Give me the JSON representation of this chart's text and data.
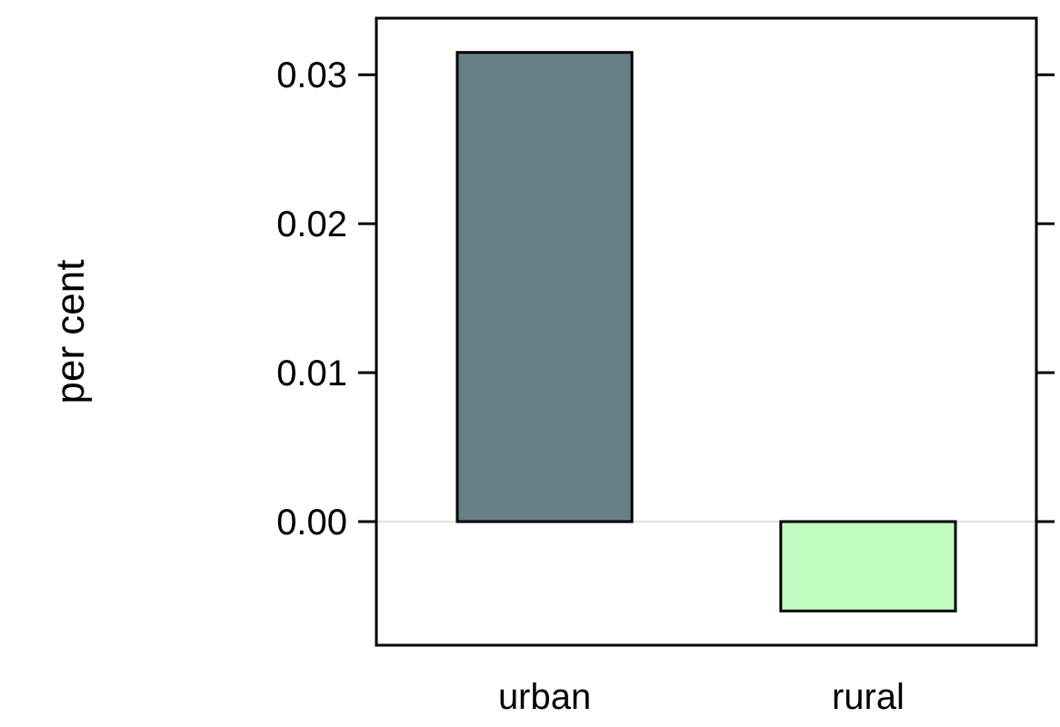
{
  "chart_data": {
    "type": "bar",
    "ylabel": "per cent",
    "categories": [
      "urban",
      "rural"
    ],
    "colors": [
      "#687f87",
      "#c1fcc1"
    ],
    "values": [
      0.0315,
      -0.006
    ],
    "ylim": [
      -0.0083,
      0.0338
    ],
    "yticks": [
      {
        "value": 0,
        "label": "0.00"
      },
      {
        "value": 0.01,
        "label": "0.01"
      },
      {
        "value": 0.02,
        "label": "0.02"
      },
      {
        "value": 0.03,
        "label": "0.03"
      }
    ],
    "ref_lines": [
      {
        "axis": "y",
        "value": 0,
        "color": "#e6e6e6"
      }
    ],
    "grid": false
  }
}
